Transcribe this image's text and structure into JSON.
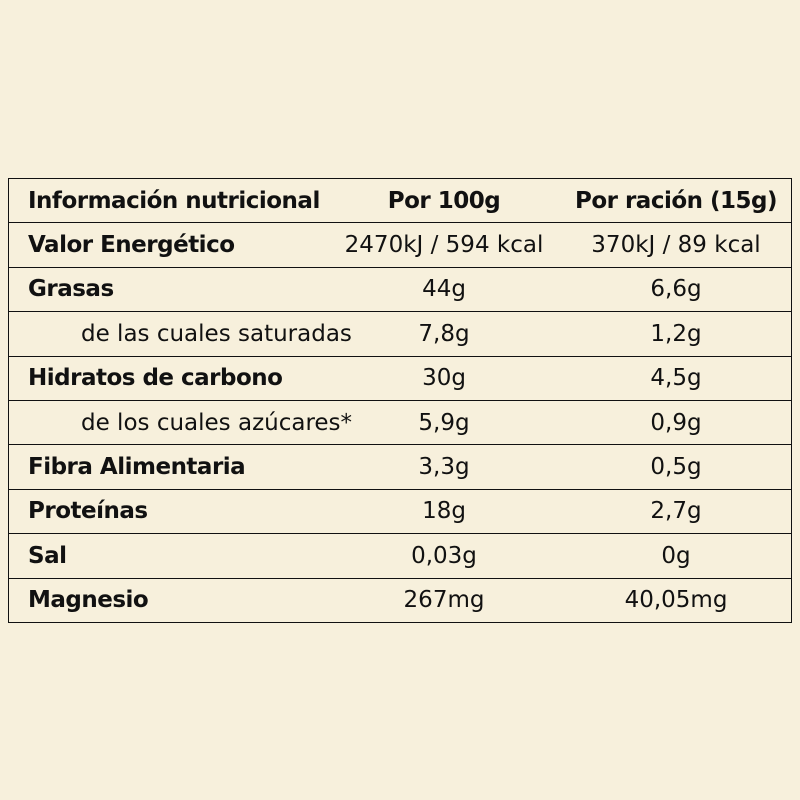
{
  "table": {
    "header": [
      "Información nutricional",
      "Por 100g",
      "Por ración (15g)"
    ],
    "rows": [
      [
        "Valor Energético",
        "2470kJ / 594 kcal",
        "370kJ / 89 kcal"
      ],
      [
        "Grasas",
        "44g",
        "6,6g"
      ],
      [
        "de las cuales saturadas",
        "7,8g",
        "1,2g"
      ],
      [
        "Hidratos de carbono",
        "30g",
        "4,5g"
      ],
      [
        "de los cuales azúcares*",
        "5,9g",
        "0,9g"
      ],
      [
        "Fibra Alimentaria",
        "3,3g",
        "0,5g"
      ],
      [
        "Proteínas",
        "18g",
        "2,7g"
      ],
      [
        "Sal",
        "0,03g",
        "0g"
      ],
      [
        "Magnesio",
        "267mg",
        "40,05mg"
      ]
    ]
  }
}
